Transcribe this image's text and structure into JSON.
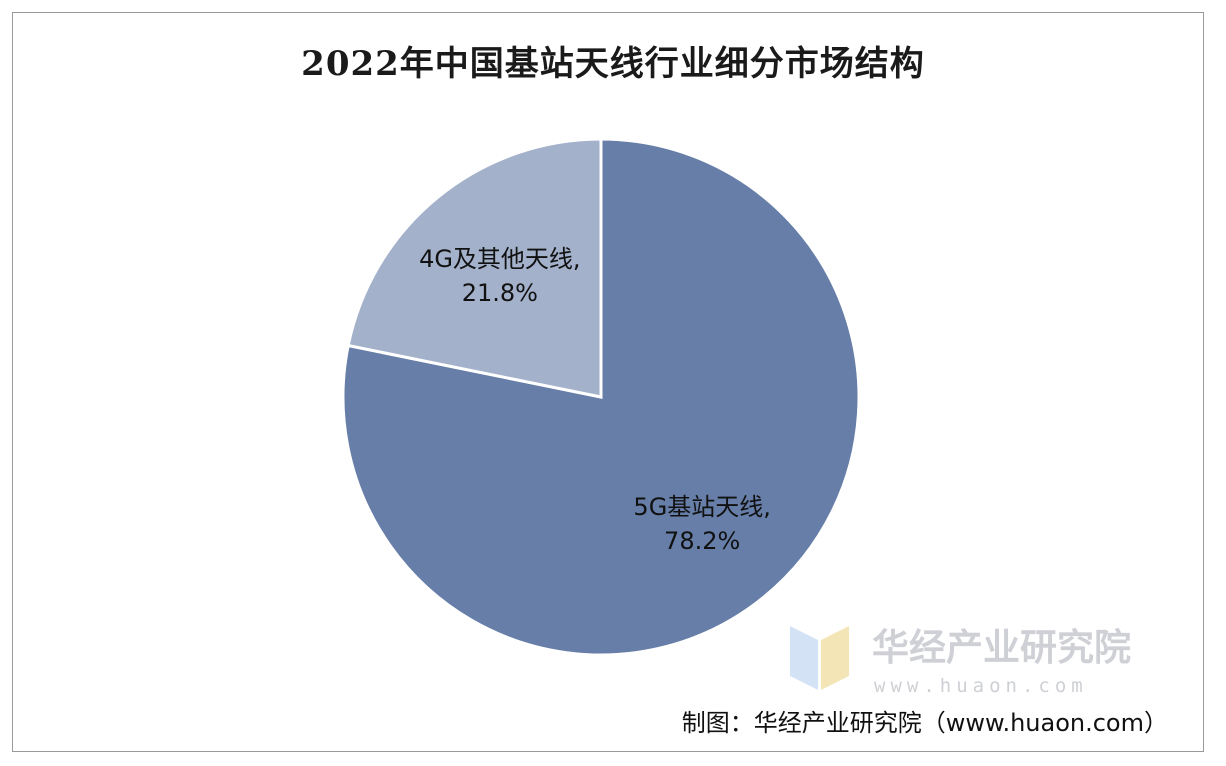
{
  "chart_data": {
    "type": "pie",
    "title": "2022年中国基站天线行业细分市场结构",
    "start_angle_deg": 0,
    "direction": "clockwise",
    "slices": [
      {
        "label": "5G基站天线",
        "value": 78.2,
        "value_label": "78.2%",
        "color": "#667ea8"
      },
      {
        "label": "4G及其他天线",
        "value": 21.8,
        "value_label": "21.8%",
        "color": "#a3b1cb"
      }
    ]
  },
  "watermark": {
    "name": "华经产业研究院",
    "url": "www.huaon.com",
    "logo_colors": [
      "#cfe0f5",
      "#f3e3b0"
    ]
  },
  "source_note": "制图：华经产业研究院（www.huaon.com）"
}
